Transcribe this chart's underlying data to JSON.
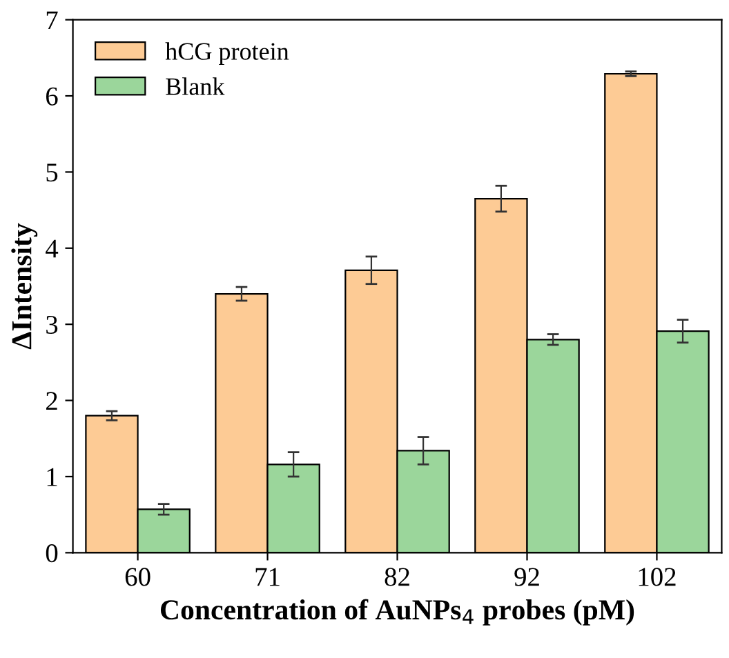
{
  "chart_data": {
    "type": "bar",
    "xlabel": "Concentration of AuNPs$_{4}$ probes (pM)",
    "ylabel": "ΔIntensity",
    "categories": [
      "60",
      "71",
      "82",
      "92",
      "102"
    ],
    "series": [
      {
        "name": "hCG protein",
        "color": "#fdcb95",
        "values": [
          1.8,
          3.4,
          3.71,
          4.65,
          6.29
        ],
        "errors": [
          0.06,
          0.09,
          0.18,
          0.17,
          0.03
        ]
      },
      {
        "name": "Blank",
        "color": "#9bd69b",
        "values": [
          0.57,
          1.16,
          1.34,
          2.8,
          2.91
        ],
        "errors": [
          0.07,
          0.16,
          0.18,
          0.07,
          0.15
        ]
      }
    ],
    "ylim": [
      0,
      7
    ],
    "yticks": [
      0,
      1,
      2,
      3,
      4,
      5,
      6,
      7
    ],
    "grid": false,
    "legend": "top left"
  }
}
